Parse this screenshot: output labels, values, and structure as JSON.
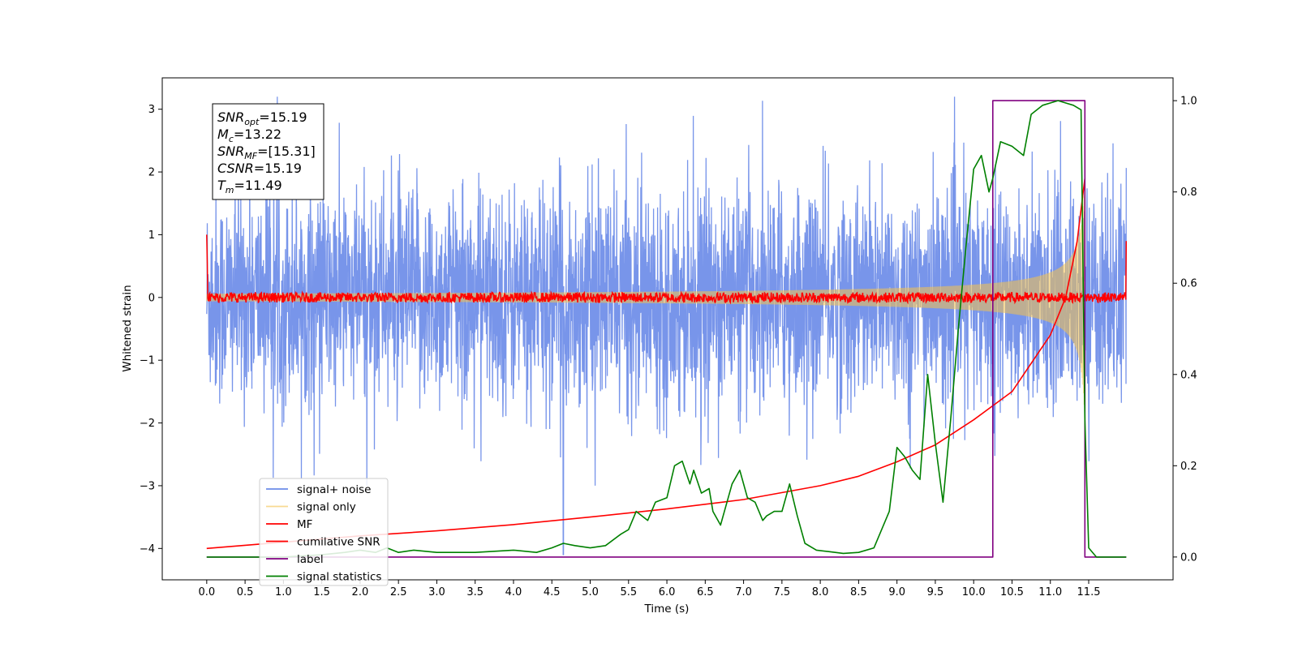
{
  "chart_data": {
    "type": "line",
    "title": "",
    "xlabel": "Time (s)",
    "ylabel": "Whitened strain",
    "xlim": [
      -0.58,
      12.6
    ],
    "ylim": [
      -4.5,
      3.5
    ],
    "y2lim": [
      -0.05,
      1.05
    ],
    "x_ticks": [
      0.0,
      0.5,
      1.0,
      1.5,
      2.0,
      2.5,
      3.0,
      3.5,
      4.0,
      4.5,
      5.0,
      5.5,
      6.0,
      6.5,
      7.0,
      7.5,
      8.0,
      8.5,
      9.0,
      9.5,
      10.0,
      10.5,
      11.0,
      11.5
    ],
    "x_tick_labels": [
      "0.0",
      "0.5",
      "1.0",
      "1.5",
      "2.0",
      "2.5",
      "3.0",
      "3.5",
      "4.0",
      "4.5",
      "5.0",
      "5.5",
      "6.0",
      "6.5",
      "7.0",
      "7.5",
      "8.0",
      "8.5",
      "9.0",
      "9.5",
      "10.0",
      "10.5",
      "11.0",
      "11.5"
    ],
    "y_ticks": [
      3,
      2,
      1,
      0,
      -1,
      -2,
      -3,
      -4
    ],
    "y_tick_labels": [
      "3",
      "2",
      "1",
      "0",
      "−1",
      "−2",
      "−3",
      "−4"
    ],
    "y2_ticks": [
      1.0,
      0.8,
      0.6,
      0.4,
      0.2,
      0.0
    ],
    "y2_tick_labels": [
      "1.0",
      "0.8",
      "0.6",
      "0.4",
      "0.2",
      "0.0"
    ],
    "legend_position": "lower-left",
    "series": [
      {
        "name": "signal+ noise",
        "color": "#6c8ce8",
        "axis": "left",
        "description_values": {
          "x_range": [
            0.0,
            11.99
          ],
          "amplitude_envelope": [
            -2.9,
            3.2
          ],
          "outlier": {
            "x": 4.65,
            "y": -4.1
          }
        }
      },
      {
        "name": "signal only",
        "color": "#f5c24a",
        "axis": "left",
        "chirp": {
          "t_start": 0.0,
          "t_merge": 11.45,
          "amp_start": 0.2,
          "amp_end": 2.0
        }
      },
      {
        "name": "MF",
        "color": "#ff0000",
        "axis": "left",
        "x_range": [
          0.0,
          11.99
        ],
        "level": 0.0,
        "jitter": 0.08,
        "edges": [
          {
            "x": 0.0,
            "y": 1.0
          },
          {
            "x": 11.99,
            "y": 0.9
          }
        ]
      },
      {
        "name": "cumilative SNR",
        "color": "#ff0000",
        "axis": "left",
        "x": [
          0.0,
          1.0,
          2.0,
          3.0,
          4.0,
          5.0,
          6.0,
          7.0,
          8.0,
          8.5,
          9.0,
          9.5,
          10.0,
          10.5,
          11.0,
          11.2,
          11.35,
          11.45
        ],
        "y": [
          -4.0,
          -3.9,
          -3.8,
          -3.72,
          -3.62,
          -3.5,
          -3.37,
          -3.22,
          -3.0,
          -2.85,
          -2.62,
          -2.35,
          -1.95,
          -1.5,
          -0.6,
          0.0,
          0.9,
          1.9
        ]
      },
      {
        "name": "label",
        "color": "#800080",
        "axis": "right",
        "x": [
          0.0,
          10.25,
          10.25,
          11.45,
          11.45,
          11.99
        ],
        "y": [
          0.0,
          0.0,
          1.0,
          1.0,
          0.0,
          0.0
        ]
      },
      {
        "name": "signal statistics",
        "color": "#008000",
        "axis": "right",
        "x": [
          0.0,
          0.5,
          1.0,
          1.5,
          1.8,
          2.0,
          2.2,
          2.35,
          2.5,
          2.7,
          3.0,
          3.5,
          4.0,
          4.3,
          4.5,
          4.65,
          4.8,
          5.0,
          5.2,
          5.4,
          5.5,
          5.6,
          5.75,
          5.85,
          6.0,
          6.1,
          6.2,
          6.3,
          6.35,
          6.45,
          6.55,
          6.6,
          6.7,
          6.85,
          6.95,
          7.05,
          7.15,
          7.25,
          7.3,
          7.4,
          7.5,
          7.6,
          7.7,
          7.8,
          7.95,
          8.1,
          8.3,
          8.5,
          8.7,
          8.9,
          9.0,
          9.1,
          9.2,
          9.3,
          9.4,
          9.5,
          9.6,
          9.7,
          9.8,
          9.9,
          10.0,
          10.1,
          10.2,
          10.25,
          10.35,
          10.5,
          10.65,
          10.75,
          10.9,
          11.1,
          11.3,
          11.4,
          11.45,
          11.5,
          11.6,
          11.99
        ],
        "y": [
          0.0,
          0.0,
          0.0,
          0.005,
          0.01,
          0.015,
          0.01,
          0.02,
          0.01,
          0.015,
          0.01,
          0.01,
          0.015,
          0.01,
          0.02,
          0.03,
          0.025,
          0.02,
          0.025,
          0.05,
          0.06,
          0.1,
          0.08,
          0.12,
          0.13,
          0.2,
          0.21,
          0.16,
          0.19,
          0.14,
          0.15,
          0.1,
          0.07,
          0.16,
          0.19,
          0.13,
          0.12,
          0.08,
          0.09,
          0.1,
          0.1,
          0.16,
          0.09,
          0.03,
          0.015,
          0.012,
          0.008,
          0.01,
          0.02,
          0.1,
          0.24,
          0.22,
          0.19,
          0.17,
          0.4,
          0.25,
          0.12,
          0.3,
          0.5,
          0.68,
          0.85,
          0.88,
          0.8,
          0.83,
          0.91,
          0.9,
          0.88,
          0.97,
          0.99,
          1.0,
          0.99,
          0.98,
          0.3,
          0.02,
          0.0,
          0.0
        ]
      }
    ]
  },
  "infobox": {
    "lines": [
      {
        "sym": "SNR",
        "sub": "opt",
        "val": "=15.19"
      },
      {
        "sym": "M",
        "sub": "c",
        "val": "=13.22"
      },
      {
        "sym": "SNR",
        "sub": "MF",
        "val": "=[15.31]"
      },
      {
        "sym": "CSNR",
        "sub": "",
        "val": "=15.19"
      },
      {
        "sym": "T",
        "sub": "m",
        "val": "=11.49"
      }
    ]
  }
}
